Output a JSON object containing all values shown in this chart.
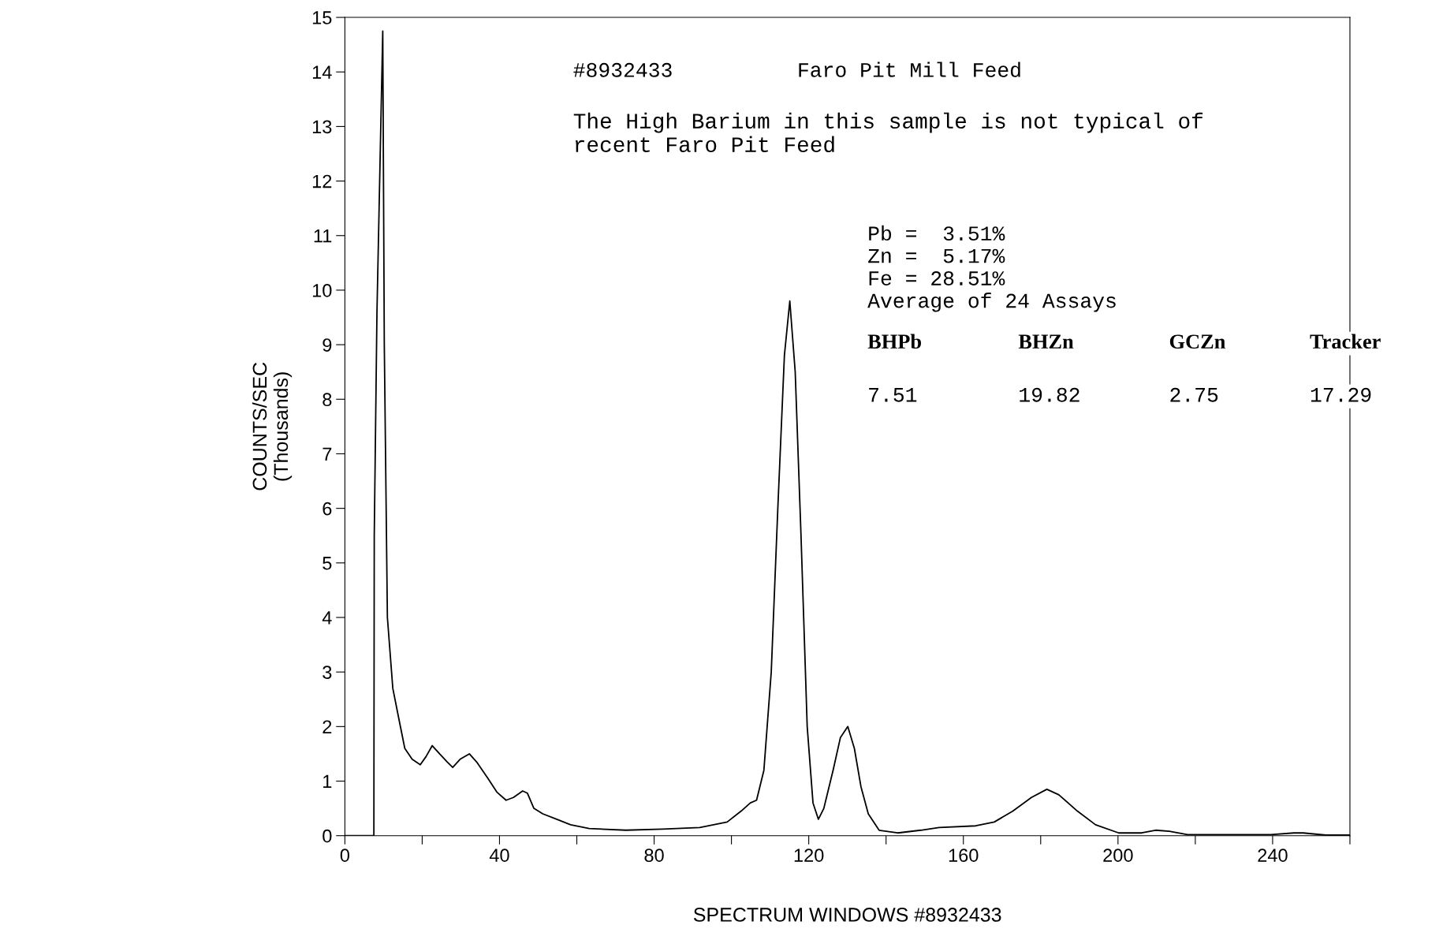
{
  "chart_data": {
    "type": "line",
    "xlabel": "SPECTRUM WINDOWS #8932433",
    "ylabel": "COUNTS/SEC\n(Thousands)",
    "xlim": [
      0,
      260
    ],
    "ylim": [
      0,
      15
    ],
    "xticks": [
      0,
      {
        "value": 20,
        "label": null
      },
      40,
      {
        "value": 60,
        "label": null
      },
      80,
      {
        "value": 100,
        "label": null
      },
      120,
      {
        "value": 140,
        "label": null
      },
      160,
      {
        "value": 180,
        "label": null
      },
      200,
      {
        "value": 220,
        "label": null
      },
      240,
      {
        "value": 260,
        "label": null
      }
    ],
    "yticks": [
      0,
      1,
      2,
      3,
      4,
      5,
      6,
      7,
      8,
      9,
      10,
      11,
      12,
      13,
      14,
      15
    ],
    "grid": false,
    "marker": "none",
    "line_style": "solid",
    "series": [
      {
        "color": "#000000",
        "x": [
          0,
          7.5,
          7.6,
          8.3,
          9.8,
          10.2,
          11,
          12.4,
          13.8,
          15.5,
          17.4,
          19.5,
          21,
          22.6,
          24.5,
          26.5,
          27.9,
          29.8,
          32.2,
          34.1,
          37,
          39.3,
          41.7,
          43.6,
          46,
          47.2,
          48.9,
          51.2,
          54.8,
          58.4,
          63.2,
          72.7,
          82.2,
          91.8,
          98.9,
          102.5,
          104.9,
          106.5,
          108.4,
          110.3,
          112,
          113.7,
          115.1,
          116.5,
          118,
          119.6,
          121.1,
          122.5,
          123.9,
          126.3,
          128.2,
          130.1,
          131.8,
          133.5,
          135.4,
          138.2,
          143,
          149,
          153.7,
          163.2,
          168,
          172.8,
          177.6,
          181.6,
          184.7,
          189.5,
          194.2,
          200.2,
          206.1,
          209.7,
          213.3,
          218,
          239.5,
          245.5,
          247.9,
          253.8,
          260
        ],
        "values": [
          0,
          0,
          5.5,
          9.6,
          14.75,
          9,
          4,
          2.7,
          2.2,
          1.6,
          1.4,
          1.3,
          1.45,
          1.65,
          1.5,
          1.35,
          1.25,
          1.4,
          1.5,
          1.35,
          1.05,
          0.8,
          0.65,
          0.7,
          0.82,
          0.78,
          0.5,
          0.4,
          0.3,
          0.2,
          0.13,
          0.1,
          0.12,
          0.15,
          0.25,
          0.45,
          0.6,
          0.65,
          1.2,
          3,
          6,
          8.8,
          9.8,
          8.5,
          5.5,
          2,
          0.6,
          0.3,
          0.5,
          1.2,
          1.8,
          2,
          1.6,
          0.9,
          0.4,
          0.1,
          0.05,
          0.1,
          0.15,
          0.18,
          0.25,
          0.45,
          0.7,
          0.85,
          0.75,
          0.45,
          0.2,
          0.05,
          0.05,
          0.1,
          0.08,
          0.02,
          0.02,
          0.05,
          0.05,
          0.01,
          0.01
        ]
      }
    ],
    "annotations": [
      "#8932433",
      "Faro Pit Mill Feed",
      "The High Barium in this sample is not typical of\nrecent Faro Pit Feed",
      "Pb =  3.51%\nZn =  5.17%\nFe = 28.51%\nAverage of 24 Assays",
      "BHPb",
      "BHZn",
      "GCZn",
      "Tracker",
      "7.51",
      "19.82",
      "2.75",
      "17.29"
    ]
  }
}
